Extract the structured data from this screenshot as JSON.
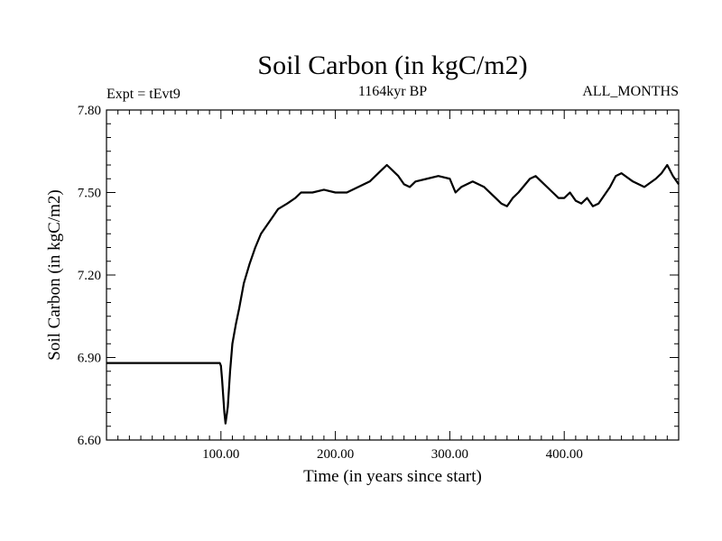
{
  "chart_data": {
    "type": "line",
    "title": "Soil Carbon (in kgC/m2)",
    "subtitle_left": "Expt = tEvt9",
    "subtitle_center": "1164kyr BP",
    "subtitle_right": "ALL_MONTHS",
    "xlabel": "Time (in years since start)",
    "ylabel": "Soil Carbon (in kgC/m2)",
    "xlim": [
      0,
      500
    ],
    "ylim": [
      6.6,
      7.8
    ],
    "x_ticks": [
      {
        "value": 100,
        "label": "100.00"
      },
      {
        "value": 200,
        "label": "200.00"
      },
      {
        "value": 300,
        "label": "300.00"
      },
      {
        "value": 400,
        "label": "400.00"
      }
    ],
    "y_ticks": [
      {
        "value": 6.6,
        "label": "6.60"
      },
      {
        "value": 6.9,
        "label": "6.90"
      },
      {
        "value": 7.2,
        "label": "7.20"
      },
      {
        "value": 7.5,
        "label": "7.50"
      },
      {
        "value": 7.8,
        "label": "7.80"
      }
    ],
    "series": [
      {
        "name": "Soil Carbon",
        "x": [
          0,
          99,
          100,
          101,
          102,
          103,
          104,
          106,
          108,
          110,
          113,
          116,
          120,
          125,
          130,
          135,
          140,
          145,
          150,
          158,
          165,
          170,
          175,
          180,
          190,
          200,
          210,
          220,
          230,
          240,
          245,
          250,
          255,
          260,
          265,
          270,
          280,
          290,
          300,
          305,
          310,
          320,
          330,
          340,
          345,
          350,
          355,
          360,
          370,
          375,
          380,
          390,
          395,
          400,
          405,
          410,
          415,
          420,
          425,
          430,
          440,
          445,
          450,
          460,
          470,
          480,
          485,
          490,
          495,
          500
        ],
        "y": [
          6.88,
          6.88,
          6.87,
          6.82,
          6.76,
          6.7,
          6.66,
          6.72,
          6.85,
          6.95,
          7.02,
          7.08,
          7.17,
          7.24,
          7.3,
          7.35,
          7.38,
          7.41,
          7.44,
          7.46,
          7.48,
          7.5,
          7.5,
          7.5,
          7.51,
          7.5,
          7.5,
          7.52,
          7.54,
          7.58,
          7.6,
          7.58,
          7.56,
          7.53,
          7.52,
          7.54,
          7.55,
          7.56,
          7.55,
          7.5,
          7.52,
          7.54,
          7.52,
          7.48,
          7.46,
          7.45,
          7.48,
          7.5,
          7.55,
          7.56,
          7.54,
          7.5,
          7.48,
          7.48,
          7.5,
          7.47,
          7.46,
          7.48,
          7.45,
          7.46,
          7.52,
          7.56,
          7.57,
          7.54,
          7.52,
          7.55,
          7.57,
          7.6,
          7.56,
          7.53
        ]
      }
    ]
  }
}
